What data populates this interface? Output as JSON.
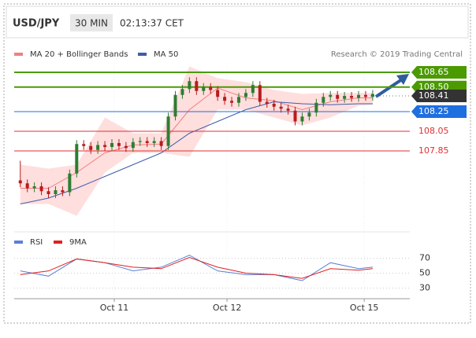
{
  "header": {
    "symbol": "USD/JPY",
    "interval": "30 MIN",
    "time": "02:13:37 CET"
  },
  "chart_data": [
    {
      "type": "candlestick",
      "source": "Research © 2019 Trading Central",
      "xlim": [
        -21.3,
        62.9
      ],
      "ylim": [
        107.066,
        108.746
      ],
      "xticks": [
        {
          "value": 0,
          "label": "Oct 11"
        },
        {
          "value": 24,
          "label": "Oct 12"
        },
        {
          "value": 53.2,
          "label": "Oct 15"
        }
      ],
      "up_color": "#2e7d32",
      "down_color": "#b71c1c",
      "x": [
        -20,
        -18.5,
        -17,
        -15.5,
        -14,
        -12.5,
        -11,
        -9.5,
        -8,
        -6.5,
        -5,
        -3.5,
        -2,
        -0.5,
        1,
        2.5,
        4,
        5.5,
        7,
        8.5,
        10,
        11.5,
        13,
        14.5,
        16,
        17.5,
        19,
        20.5,
        22,
        23.5,
        25,
        26.5,
        28,
        29.5,
        31,
        32.5,
        34,
        35.5,
        37,
        38.5,
        40,
        41.5,
        43,
        44.5,
        46,
        47.5,
        49,
        50.5,
        52,
        53.5,
        55
      ],
      "open": [
        107.55,
        107.52,
        107.47,
        107.49,
        107.44,
        107.41,
        107.45,
        107.43,
        107.62,
        107.92,
        107.9,
        107.86,
        107.91,
        107.89,
        107.93,
        107.9,
        107.88,
        107.94,
        107.95,
        107.93,
        107.95,
        107.9,
        108.2,
        108.42,
        108.48,
        108.56,
        108.46,
        108.5,
        108.47,
        108.4,
        108.36,
        108.34,
        108.4,
        108.44,
        108.52,
        108.35,
        108.33,
        108.3,
        108.28,
        108.26,
        108.15,
        108.2,
        108.24,
        108.34,
        108.4,
        108.42,
        108.38,
        108.41,
        108.39,
        108.42,
        108.4
      ],
      "high": [
        107.75,
        107.56,
        107.53,
        107.53,
        107.48,
        107.49,
        107.49,
        107.66,
        107.96,
        107.96,
        107.94,
        107.95,
        107.95,
        107.97,
        107.97,
        107.94,
        107.98,
        107.99,
        107.99,
        107.99,
        107.99,
        108.24,
        108.46,
        108.52,
        108.6,
        108.6,
        108.54,
        108.54,
        108.51,
        108.44,
        108.4,
        108.44,
        108.48,
        108.56,
        108.56,
        108.39,
        108.37,
        108.34,
        108.32,
        108.3,
        108.24,
        108.28,
        108.38,
        108.44,
        108.46,
        108.46,
        108.45,
        108.45,
        108.46,
        108.46,
        108.47
      ],
      "low": [
        107.48,
        107.43,
        107.43,
        107.4,
        107.37,
        107.37,
        107.39,
        107.39,
        107.58,
        107.86,
        107.82,
        107.82,
        107.85,
        107.85,
        107.86,
        107.84,
        107.84,
        107.9,
        107.89,
        107.89,
        107.86,
        107.86,
        108.16,
        108.38,
        108.44,
        108.42,
        108.42,
        108.43,
        108.36,
        108.32,
        108.3,
        108.3,
        108.36,
        108.4,
        108.31,
        108.29,
        108.26,
        108.24,
        108.22,
        108.11,
        108.11,
        108.16,
        108.2,
        108.3,
        108.36,
        108.34,
        108.34,
        108.35,
        108.35,
        108.36,
        108.36
      ],
      "close": [
        107.52,
        107.47,
        107.49,
        107.44,
        107.41,
        107.45,
        107.43,
        107.62,
        107.92,
        107.9,
        107.86,
        107.91,
        107.89,
        107.93,
        107.9,
        107.88,
        107.94,
        107.95,
        107.93,
        107.95,
        107.9,
        108.2,
        108.42,
        108.48,
        108.56,
        108.46,
        108.5,
        108.47,
        108.4,
        108.36,
        108.34,
        108.4,
        108.44,
        108.52,
        108.35,
        108.33,
        108.3,
        108.28,
        108.26,
        108.15,
        108.2,
        108.24,
        108.34,
        108.4,
        108.42,
        108.38,
        108.41,
        108.39,
        108.42,
        108.4,
        108.43
      ],
      "series": [
        {
          "name": "MA 20 + Bollinger Bands",
          "color": "#f08080",
          "band_color": "#ffdede",
          "x": [
            -20,
            -14,
            -8,
            -2,
            4,
            10,
            16,
            22,
            28,
            34,
            40,
            46,
            52,
            55
          ],
          "values": [
            107.47,
            107.47,
            107.63,
            107.83,
            107.91,
            107.92,
            108.27,
            108.49,
            108.39,
            108.36,
            108.27,
            108.35,
            108.39,
            108.39
          ],
          "upper": [
            107.71,
            107.67,
            107.71,
            108.19,
            108.03,
            108.03,
            108.71,
            108.59,
            108.55,
            108.47,
            108.43,
            108.44,
            108.44,
            108.44
          ],
          "lower": [
            107.31,
            107.31,
            107.19,
            107.63,
            107.83,
            107.83,
            107.79,
            108.27,
            108.27,
            108.19,
            108.11,
            108.19,
            108.31,
            108.32
          ]
        },
        {
          "name": "MA 50",
          "color": "#3b5ea8",
          "x": [
            -20,
            -14,
            -8,
            -2,
            4,
            10,
            16,
            22,
            28,
            34,
            40,
            46,
            52,
            55
          ],
          "values": [
            107.31,
            107.37,
            107.47,
            107.59,
            107.71,
            107.83,
            108.03,
            108.15,
            108.27,
            108.35,
            108.33,
            108.32,
            108.33,
            108.33
          ]
        }
      ],
      "levels": [
        {
          "value": 108.65,
          "label": "108.65",
          "color": "#4a9a00",
          "box": true,
          "line": "solid"
        },
        {
          "value": 108.5,
          "label": "108.50",
          "color": "#4a9a00",
          "box": true,
          "line": "solid"
        },
        {
          "value": 108.41,
          "label": "108.41",
          "color": "#333333",
          "box": true,
          "line": "dotted"
        },
        {
          "value": 108.25,
          "label": "108.25",
          "color": "#1e6fe0",
          "box": true,
          "line": "solid"
        },
        {
          "value": 108.05,
          "label": "108.05",
          "color": "#e03030",
          "box": false,
          "line": "solid"
        },
        {
          "value": 107.85,
          "label": "107.85",
          "color": "#e03030",
          "box": false,
          "line": "solid"
        }
      ]
    },
    {
      "type": "line",
      "xlim": [
        -21.3,
        62.9
      ],
      "ylim": [
        20,
        100
      ],
      "yticks": [
        30,
        50,
        70
      ],
      "xticks": [
        {
          "value": 0,
          "label": "Oct 11"
        },
        {
          "value": 24,
          "label": "Oct 12"
        },
        {
          "value": 53.2,
          "label": "Oct 15"
        }
      ],
      "x": [
        -20,
        -14,
        -8,
        -2,
        4,
        10,
        16,
        22,
        28,
        34,
        40,
        46,
        52,
        55
      ],
      "series": [
        {
          "name": "RSI",
          "color": "#5b7fd6",
          "values": [
            53,
            46,
            69,
            64,
            53,
            58,
            74,
            53,
            48,
            48,
            40,
            64,
            56,
            58
          ]
        },
        {
          "name": "9MA",
          "color": "#e02020",
          "values": [
            48,
            53,
            69,
            64,
            58,
            56,
            71,
            58,
            50,
            48,
            43,
            56,
            54,
            56
          ]
        }
      ]
    }
  ]
}
